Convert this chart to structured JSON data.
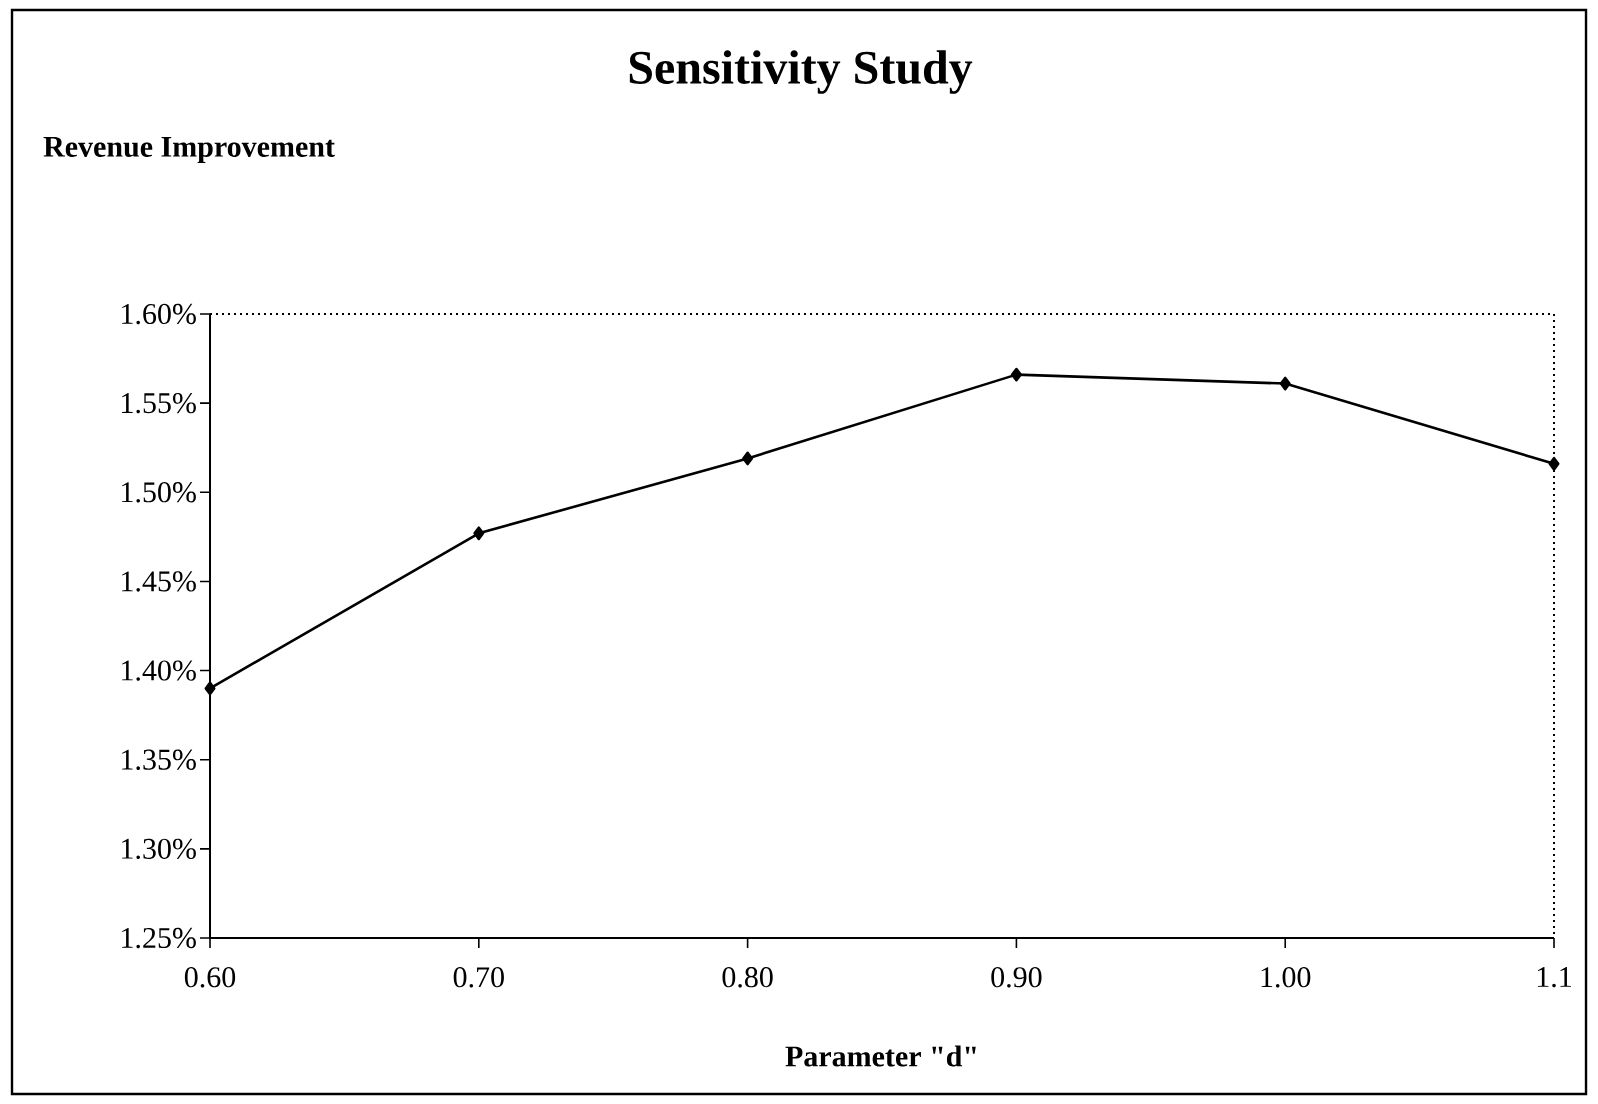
{
  "chart_data": {
    "type": "line",
    "title": "Sensitivity Study",
    "annotations": [
      "Revenue Improvement"
    ],
    "xlabel": "Parameter \"d\"",
    "x": [
      0.6,
      0.7,
      0.8,
      0.9,
      1.0,
      1.1
    ],
    "values": [
      1.39,
      1.477,
      1.519,
      1.566,
      1.561,
      1.516
    ],
    "color": "#000000",
    "marker": "diamond",
    "line_style": "solid",
    "xlim": [
      0.6,
      1.1
    ],
    "xticks": [
      {
        "value": 0.6,
        "label": "0.60"
      },
      {
        "value": 0.7,
        "label": "0.70"
      },
      {
        "value": 0.8,
        "label": "0.80"
      },
      {
        "value": 0.9,
        "label": "0.90"
      },
      {
        "value": 1.0,
        "label": "1.00"
      },
      1.1
    ],
    "ylim": [
      1.25,
      1.6
    ],
    "yticks": [
      {
        "value": 1.25,
        "label": "1.25%"
      },
      {
        "value": 1.3,
        "label": "1.30%"
      },
      {
        "value": 1.35,
        "label": "1.35%"
      },
      {
        "value": 1.4,
        "label": "1.40%"
      },
      {
        "value": 1.45,
        "label": "1.45%"
      },
      {
        "value": 1.5,
        "label": "1.50%"
      },
      {
        "value": 1.55,
        "label": "1.55%"
      },
      {
        "value": 1.6,
        "label": "1.60%"
      }
    ]
  }
}
